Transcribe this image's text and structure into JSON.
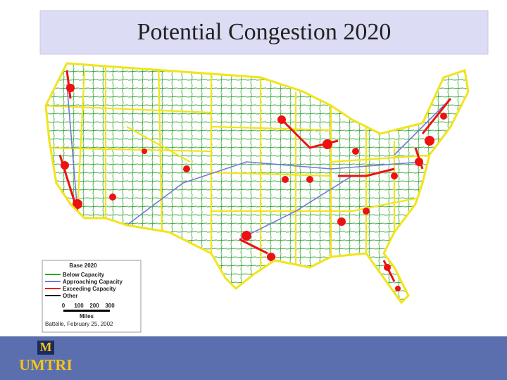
{
  "title": "Potential Congestion 2020",
  "legend": {
    "title": "Base 2020",
    "items": [
      {
        "label": "Below Capacity",
        "color": "#22aa22"
      },
      {
        "label": "Approaching Capacity",
        "color": "#7777dd"
      },
      {
        "label": "Exceeding Capacity",
        "color": "#ee1111"
      },
      {
        "label": "Other",
        "color": "#000000"
      }
    ],
    "scale": {
      "ticks": [
        "0",
        "100",
        "200",
        "300"
      ],
      "unit": "Miles"
    },
    "source": "Battelle, February 25, 2002"
  },
  "footer": {
    "logo_letter": "M",
    "org": "UMTRI"
  }
}
